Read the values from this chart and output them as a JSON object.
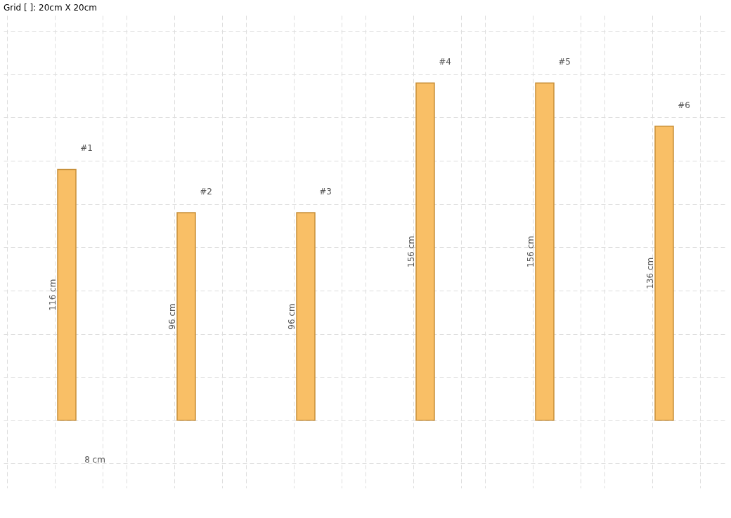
{
  "chart_data": {
    "type": "bar",
    "title": "Grid [ ]: 20cm X 20cm",
    "categories": [
      "#1",
      "#2",
      "#3",
      "#4",
      "#5",
      "#6"
    ],
    "values": [
      116,
      96,
      96,
      156,
      156,
      136
    ],
    "value_labels": [
      "116 cm",
      "96 cm",
      "96 cm",
      "156 cm",
      "156 cm",
      "136 cm"
    ],
    "color": "#f9bf66",
    "grid": true,
    "tick_labels": false,
    "annotations": [
      "8 cm"
    ]
  }
}
